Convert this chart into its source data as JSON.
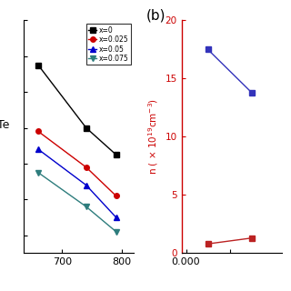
{
  "panel_a": {
    "series": [
      {
        "label": "x=0",
        "color": "#000000",
        "marker": "s",
        "x": [
          660,
          740,
          790
        ],
        "y": [
          11.5,
          8.0,
          6.5
        ]
      },
      {
        "label": "x=0.025",
        "color": "#cc0000",
        "marker": "o",
        "x": [
          660,
          740,
          790
        ],
        "y": [
          7.8,
          5.8,
          4.2
        ]
      },
      {
        "label": "x=0.05",
        "color": "#0000cc",
        "marker": "^",
        "x": [
          660,
          740,
          790
        ],
        "y": [
          6.8,
          4.8,
          3.0
        ]
      },
      {
        "label": "x=0.075",
        "color": "#2e7d7d",
        "marker": "v",
        "x": [
          660,
          740,
          790
        ],
        "y": [
          5.5,
          3.6,
          2.2
        ]
      }
    ],
    "xticks": [
      700,
      800
    ],
    "xlim": [
      635,
      820
    ],
    "ylim": [
      1.0,
      14.0
    ]
  },
  "panel_b": {
    "blue_series": {
      "color": "#3333bb",
      "marker": "s",
      "x": [
        0.025,
        0.075
      ],
      "y": [
        17.5,
        13.8
      ]
    },
    "red_series": {
      "color": "#bb2222",
      "marker": "s",
      "x": [
        0.025,
        0.075
      ],
      "y": [
        0.8,
        1.3
      ]
    },
    "ylabel": "n ( × 10$^{19}$cm$^{-3}$)",
    "ylabel_color": "#cc0000",
    "xticks": [
      0.0,
      0.05
    ],
    "xtick_labels": [
      "0.000",
      ""
    ],
    "xlim": [
      -0.005,
      0.11
    ],
    "yticks": [
      0,
      5,
      10,
      15,
      20
    ],
    "ylim": [
      0,
      20
    ],
    "panel_label": "(b)"
  }
}
